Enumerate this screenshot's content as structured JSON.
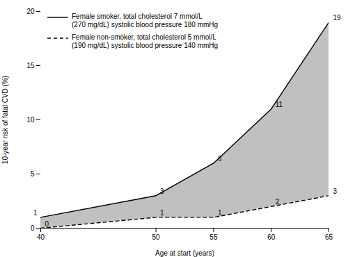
{
  "chart_data": {
    "type": "line",
    "x": [
      40,
      50,
      55,
      60,
      65
    ],
    "series": [
      {
        "name": "Female smoker, total cholesterol 7 mmol/L\n(270 mg/dL) systolic blood pressure 180 mmHg",
        "color": "#000000",
        "line_style": "solid",
        "values": [
          1,
          3,
          6,
          11,
          19
        ]
      },
      {
        "name": "Female non-smoker, total cholesterol 5 mmol/L\n(190 mg/dL) systolic blood pressure 140 mmHg",
        "color": "#000000",
        "line_style": "dashed",
        "values": [
          0,
          1,
          1,
          2,
          3
        ]
      }
    ],
    "color": "#c0c0c0",
    "xlabel": "Age at start (years)",
    "ylabel": "10-year risk of fatal CVD (%)",
    "xlim": [
      40,
      65
    ],
    "xticks": [
      40,
      50,
      55,
      60,
      65
    ],
    "ylim": [
      0,
      20
    ],
    "yticks": [
      0,
      5,
      10,
      15,
      20
    ],
    "data_labels": true,
    "grid": false,
    "legend": "upper left"
  }
}
